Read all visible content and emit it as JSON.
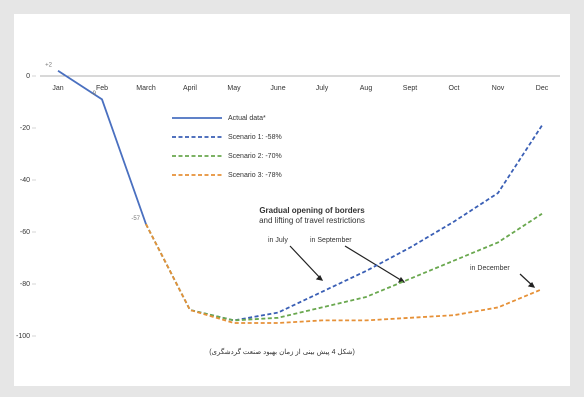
{
  "chart_data": {
    "type": "line",
    "categories": [
      "Jan",
      "Feb",
      "March",
      "April",
      "May",
      "June",
      "July",
      "Aug",
      "Sept",
      "Oct",
      "Nov",
      "Dec"
    ],
    "series": [
      {
        "name": "Actual data*",
        "color": "#4a70c0",
        "dash": false,
        "values": [
          2,
          -9,
          -57,
          null,
          null,
          null,
          null,
          null,
          null,
          null,
          null,
          null
        ],
        "value_labels": [
          "+2",
          "-9",
          "-57",
          null,
          null,
          null,
          null,
          null,
          null,
          null,
          null,
          null
        ]
      },
      {
        "name": "Scenario 1:  -58%",
        "color": "#3a5fb5",
        "dash": true,
        "values": [
          null,
          null,
          -57,
          -90,
          -94,
          -91,
          -83,
          -75,
          -66,
          -56,
          -45,
          -19
        ]
      },
      {
        "name": "Scenario 2:  -70%",
        "color": "#6aa84f",
        "dash": true,
        "values": [
          null,
          null,
          -57,
          -90,
          -94,
          -93,
          -89,
          -85,
          -78,
          -71,
          -64,
          -53
        ]
      },
      {
        "name": "Scenario 3:  -78%",
        "color": "#e69138",
        "dash": true,
        "values": [
          null,
          null,
          -57,
          -90,
          -95,
          -95,
          -94,
          -94,
          -93,
          -92,
          -89,
          -82
        ]
      }
    ],
    "ylim": [
      0,
      -100
    ],
    "yticks": [
      0,
      -20,
      -40,
      -60,
      -80,
      -100
    ],
    "annotations": [
      "Gradual opening of borders",
      "and lifting of travel restrictions",
      "in July",
      "in September",
      "in December"
    ],
    "caption": "(شکل 4 پیش بینی از زمان بهبود صنعت گردشگری)"
  }
}
